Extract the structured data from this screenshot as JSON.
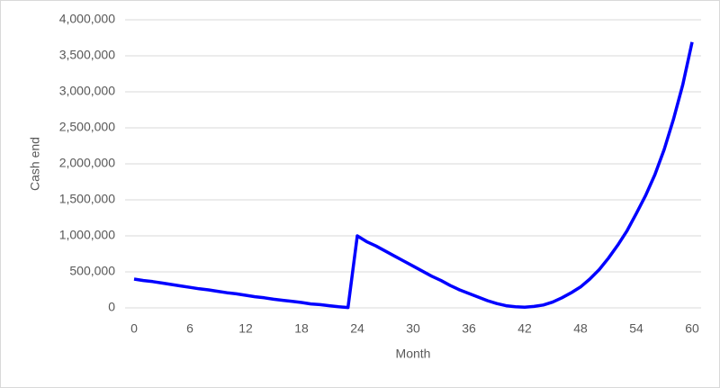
{
  "chart_data": {
    "type": "line",
    "x_label": "Month",
    "y_label": "Cash end",
    "x": [
      0,
      1,
      2,
      3,
      4,
      5,
      6,
      7,
      8,
      9,
      10,
      11,
      12,
      13,
      14,
      15,
      16,
      17,
      18,
      19,
      20,
      21,
      22,
      23,
      24,
      25,
      26,
      27,
      28,
      29,
      30,
      31,
      32,
      33,
      34,
      35,
      36,
      37,
      38,
      39,
      40,
      41,
      42,
      43,
      44,
      45,
      46,
      47,
      48,
      49,
      50,
      51,
      52,
      53,
      54,
      55,
      56,
      57,
      58,
      59,
      60
    ],
    "series": [
      {
        "name": "Cash end",
        "color": "#0000ff",
        "values": [
          400000,
          380000,
          365000,
          345000,
          325000,
          305000,
          285000,
          265000,
          250000,
          230000,
          210000,
          195000,
          175000,
          155000,
          140000,
          120000,
          105000,
          90000,
          75000,
          55000,
          45000,
          30000,
          15000,
          5000,
          1000000,
          920000,
          860000,
          790000,
          720000,
          650000,
          580000,
          510000,
          440000,
          380000,
          310000,
          250000,
          200000,
          150000,
          100000,
          60000,
          30000,
          15000,
          10000,
          20000,
          40000,
          80000,
          140000,
          210000,
          290000,
          400000,
          530000,
          690000,
          870000,
          1070000,
          1310000,
          1560000,
          1850000,
          2200000,
          2620000,
          3100000,
          3690000
        ]
      }
    ],
    "xlim": [
      0,
      60
    ],
    "xticks": [
      0,
      6,
      12,
      18,
      24,
      30,
      36,
      42,
      48,
      54,
      60
    ],
    "ylim": [
      0,
      4000000
    ],
    "yticks": [
      0,
      {
        "value": 500000,
        "label": "500,000"
      },
      {
        "value": 1000000,
        "label": "1,000,000"
      },
      {
        "value": 1500000,
        "label": "1,500,000"
      },
      {
        "value": 2000000,
        "label": "2,000,000"
      },
      {
        "value": 2500000,
        "label": "2,500,000"
      },
      {
        "value": 3000000,
        "label": "3,000,000"
      },
      {
        "value": 3500000,
        "label": "3,500,000"
      },
      {
        "value": 4000000,
        "label": "4,000,000"
      }
    ],
    "grid": true
  }
}
